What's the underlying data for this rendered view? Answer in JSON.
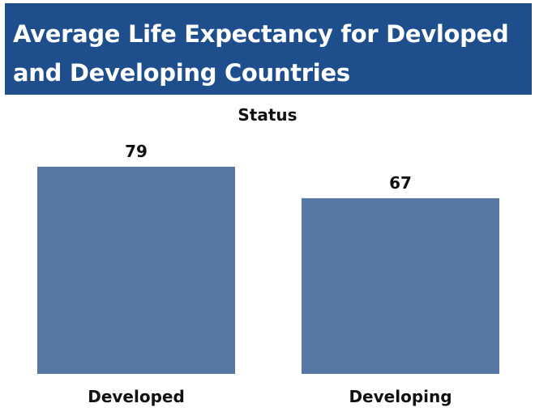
{
  "title": "Average Life Expectancy for Devloped and Developing Countries",
  "header_label": "Status",
  "colors": {
    "banner": "#1f4e8c",
    "bar": "#5878a4"
  },
  "chart_data": {
    "type": "bar",
    "categories": [
      "Developed",
      "Developing"
    ],
    "values": [
      79,
      67
    ],
    "value_labels": [
      "79",
      "67"
    ],
    "title": "Average Life Expectancy for Devloped and Developing Countries",
    "column_header": "Status",
    "xlabel": "",
    "ylabel": "",
    "ylim": [
      0,
      79
    ],
    "grid": false,
    "legend": "none"
  }
}
